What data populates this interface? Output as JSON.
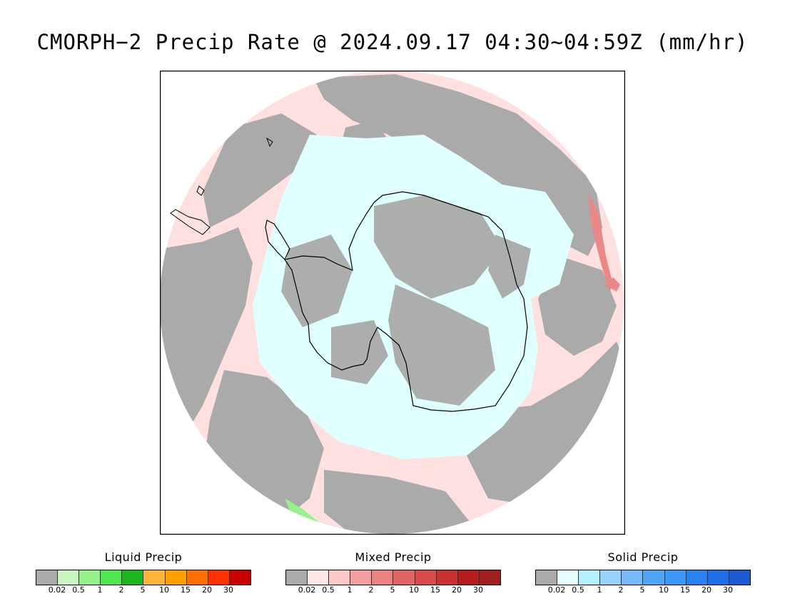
{
  "title": "CMORPH−2 Precip Rate @ 2024.09.17 04:30~04:59Z (mm/hr)",
  "map": {
    "projection": "south-polar-stereographic",
    "colors": {
      "background": "#ffffff",
      "no_precip": "#aaaaaa",
      "light_mixed": "#ffe0e0",
      "light_solid": "#e0ffff",
      "land_outline": "#000000"
    }
  },
  "legends": [
    {
      "title": "Liquid Precip",
      "colors": [
        "#aaaaaa",
        "#c8f5c0",
        "#96f08c",
        "#50e650",
        "#1eb41e",
        "#ffb43c",
        "#ffa000",
        "#ff6e00",
        "#ff3200",
        "#c80000"
      ],
      "ticks": [
        "0.02",
        "0.5",
        "1",
        "2",
        "5",
        "10",
        "15",
        "20",
        "30"
      ]
    },
    {
      "title": "Mixed Precip",
      "colors": [
        "#aaaaaa",
        "#ffe6e6",
        "#ffc8c8",
        "#f5a0a0",
        "#eb8282",
        "#e16464",
        "#d74b4b",
        "#c83232",
        "#b41e1e",
        "#a01e1e"
      ],
      "ticks": [
        "0.02",
        "0.5",
        "1",
        "2",
        "5",
        "10",
        "15",
        "20",
        "30"
      ]
    },
    {
      "title": "Solid Precip",
      "colors": [
        "#aaaaaa",
        "#e6ffff",
        "#b4f0ff",
        "#96d2fa",
        "#78b9fa",
        "#50a5f5",
        "#3c96f5",
        "#2882f0",
        "#1e6ee6",
        "#1e5ad2"
      ],
      "ticks": [
        "0.02",
        "0.5",
        "1",
        "2",
        "5",
        "10",
        "15",
        "20",
        "30"
      ]
    }
  ]
}
